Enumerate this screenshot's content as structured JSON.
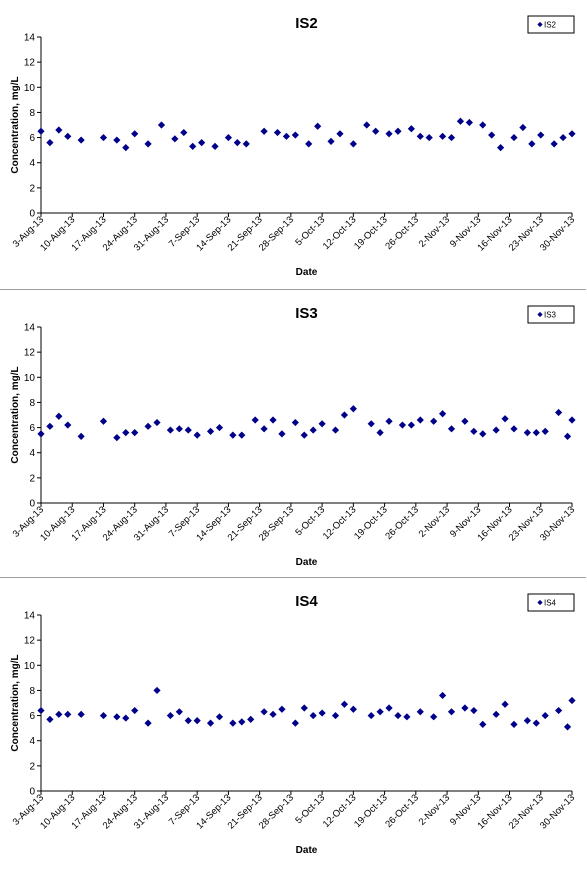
{
  "chart_data": [
    {
      "type": "scatter",
      "title": "IS2",
      "xlabel": "Date",
      "ylabel": "Concentration, mg/L",
      "ylim": [
        0,
        14
      ],
      "yticks": [
        0,
        2,
        4,
        6,
        8,
        10,
        12,
        14
      ],
      "xlim": [
        "2013-08-03",
        "2013-11-30"
      ],
      "xticks": [
        "3-Aug-13",
        "10-Aug-13",
        "17-Aug-13",
        "24-Aug-13",
        "31-Aug-13",
        "7-Sep-13",
        "14-Sep-13",
        "21-Sep-13",
        "28-Sep-13",
        "5-Oct-13",
        "12-Oct-13",
        "19-Oct-13",
        "26-Oct-13",
        "2-Nov-13",
        "9-Nov-13",
        "16-Nov-13",
        "23-Nov-13",
        "30-Nov-13"
      ],
      "legend": "top-right",
      "grid": false,
      "series": [
        {
          "name": "IS2",
          "color": "#00008b",
          "x": [
            "2013-08-03",
            "2013-08-05",
            "2013-08-07",
            "2013-08-09",
            "2013-08-12",
            "2013-08-17",
            "2013-08-20",
            "2013-08-22",
            "2013-08-24",
            "2013-08-27",
            "2013-08-30",
            "2013-09-02",
            "2013-09-04",
            "2013-09-06",
            "2013-09-08",
            "2013-09-11",
            "2013-09-14",
            "2013-09-16",
            "2013-09-18",
            "2013-09-22",
            "2013-09-25",
            "2013-09-27",
            "2013-09-29",
            "2013-10-02",
            "2013-10-04",
            "2013-10-07",
            "2013-10-09",
            "2013-10-12",
            "2013-10-15",
            "2013-10-17",
            "2013-10-20",
            "2013-10-22",
            "2013-10-25",
            "2013-10-27",
            "2013-10-29",
            "2013-11-01",
            "2013-11-03",
            "2013-11-05",
            "2013-11-07",
            "2013-11-10",
            "2013-11-12",
            "2013-11-14",
            "2013-11-17",
            "2013-11-19",
            "2013-11-21",
            "2013-11-23",
            "2013-11-26",
            "2013-11-28",
            "2013-11-30"
          ],
          "values": [
            6.5,
            5.6,
            6.6,
            6.1,
            5.8,
            6.0,
            5.8,
            5.2,
            6.3,
            5.5,
            7.0,
            5.9,
            6.4,
            5.3,
            5.6,
            5.3,
            6.0,
            5.6,
            5.5,
            6.5,
            6.4,
            6.1,
            6.2,
            5.5,
            6.9,
            5.7,
            6.3,
            5.5,
            7.0,
            6.5,
            6.3,
            6.5,
            6.7,
            6.1,
            6.0,
            6.1,
            6.0,
            7.3,
            7.2,
            7.0,
            6.2,
            5.2,
            6.0,
            6.8,
            5.5,
            6.2,
            5.5,
            6.0,
            6.3
          ]
        }
      ]
    },
    {
      "type": "scatter",
      "title": "IS3",
      "xlabel": "Date",
      "ylabel": "Concentration, mg/L",
      "ylim": [
        0,
        14
      ],
      "yticks": [
        0,
        2,
        4,
        6,
        8,
        10,
        12,
        14
      ],
      "xlim": [
        "2013-08-03",
        "2013-11-30"
      ],
      "xticks": [
        "3-Aug-13",
        "10-Aug-13",
        "17-Aug-13",
        "24-Aug-13",
        "31-Aug-13",
        "7-Sep-13",
        "14-Sep-13",
        "21-Sep-13",
        "28-Sep-13",
        "5-Oct-13",
        "12-Oct-13",
        "19-Oct-13",
        "26-Oct-13",
        "2-Nov-13",
        "9-Nov-13",
        "16-Nov-13",
        "23-Nov-13",
        "30-Nov-13"
      ],
      "legend": "top-right",
      "grid": false,
      "series": [
        {
          "name": "IS3",
          "color": "#00008b",
          "x": [
            "2013-08-03",
            "2013-08-05",
            "2013-08-07",
            "2013-08-09",
            "2013-08-12",
            "2013-08-17",
            "2013-08-20",
            "2013-08-22",
            "2013-08-24",
            "2013-08-27",
            "2013-08-29",
            "2013-09-01",
            "2013-09-03",
            "2013-09-05",
            "2013-09-07",
            "2013-09-10",
            "2013-09-12",
            "2013-09-15",
            "2013-09-17",
            "2013-09-20",
            "2013-09-22",
            "2013-09-24",
            "2013-09-26",
            "2013-09-29",
            "2013-10-01",
            "2013-10-03",
            "2013-10-05",
            "2013-10-08",
            "2013-10-10",
            "2013-10-12",
            "2013-10-16",
            "2013-10-18",
            "2013-10-20",
            "2013-10-23",
            "2013-10-25",
            "2013-10-27",
            "2013-10-30",
            "2013-11-01",
            "2013-11-03",
            "2013-11-06",
            "2013-11-08",
            "2013-11-10",
            "2013-11-13",
            "2013-11-15",
            "2013-11-17",
            "2013-11-20",
            "2013-11-22",
            "2013-11-24",
            "2013-11-27",
            "2013-11-29",
            "2013-11-30"
          ],
          "values": [
            5.5,
            6.1,
            6.9,
            6.2,
            5.3,
            6.5,
            5.2,
            5.6,
            5.6,
            6.1,
            6.4,
            5.8,
            5.9,
            5.8,
            5.4,
            5.7,
            6.0,
            5.4,
            5.4,
            6.6,
            5.9,
            6.6,
            5.5,
            6.4,
            5.4,
            5.8,
            6.3,
            5.8,
            7.0,
            7.5,
            6.3,
            5.6,
            6.5,
            6.2,
            6.2,
            6.6,
            6.5,
            7.1,
            5.9,
            6.5,
            5.7,
            5.5,
            5.8,
            6.7,
            5.9,
            5.6,
            5.6,
            5.7,
            7.2,
            5.3,
            6.6
          ]
        }
      ]
    },
    {
      "type": "scatter",
      "title": "IS4",
      "xlabel": "Date",
      "ylabel": "Concentration, mg/L",
      "ylim": [
        0,
        14
      ],
      "yticks": [
        0,
        2,
        4,
        6,
        8,
        10,
        12,
        14
      ],
      "xlim": [
        "2013-08-03",
        "2013-11-30"
      ],
      "xticks": [
        "3-Aug-13",
        "10-Aug-13",
        "17-Aug-13",
        "24-Aug-13",
        "31-Aug-13",
        "7-Sep-13",
        "14-Sep-13",
        "21-Sep-13",
        "28-Sep-13",
        "5-Oct-13",
        "12-Oct-13",
        "19-Oct-13",
        "26-Oct-13",
        "2-Nov-13",
        "9-Nov-13",
        "16-Nov-13",
        "23-Nov-13",
        "30-Nov-13"
      ],
      "legend": "top-right",
      "grid": false,
      "series": [
        {
          "name": "IS4",
          "color": "#00008b",
          "x": [
            "2013-08-03",
            "2013-08-05",
            "2013-08-07",
            "2013-08-09",
            "2013-08-12",
            "2013-08-17",
            "2013-08-20",
            "2013-08-22",
            "2013-08-24",
            "2013-08-27",
            "2013-08-29",
            "2013-09-01",
            "2013-09-03",
            "2013-09-05",
            "2013-09-07",
            "2013-09-10",
            "2013-09-12",
            "2013-09-15",
            "2013-09-17",
            "2013-09-19",
            "2013-09-22",
            "2013-09-24",
            "2013-09-26",
            "2013-09-29",
            "2013-10-01",
            "2013-10-03",
            "2013-10-05",
            "2013-10-08",
            "2013-10-10",
            "2013-10-12",
            "2013-10-16",
            "2013-10-18",
            "2013-10-20",
            "2013-10-22",
            "2013-10-24",
            "2013-10-27",
            "2013-10-30",
            "2013-11-01",
            "2013-11-03",
            "2013-11-06",
            "2013-11-08",
            "2013-11-10",
            "2013-11-13",
            "2013-11-15",
            "2013-11-17",
            "2013-11-20",
            "2013-11-22",
            "2013-11-24",
            "2013-11-27",
            "2013-11-29",
            "2013-11-30"
          ],
          "values": [
            6.4,
            5.7,
            6.1,
            6.1,
            6.1,
            6.0,
            5.9,
            5.8,
            6.4,
            5.4,
            8.0,
            6.0,
            6.3,
            5.6,
            5.6,
            5.4,
            5.9,
            5.4,
            5.5,
            5.7,
            6.3,
            6.1,
            6.5,
            5.4,
            6.6,
            6.0,
            6.2,
            6.0,
            6.9,
            6.5,
            6.0,
            6.3,
            6.6,
            6.0,
            5.9,
            6.3,
            5.9,
            7.6,
            6.3,
            6.6,
            6.4,
            5.3,
            6.1,
            6.9,
            5.3,
            5.6,
            5.4,
            6.0,
            6.4,
            5.1,
            7.2
          ]
        }
      ]
    }
  ]
}
